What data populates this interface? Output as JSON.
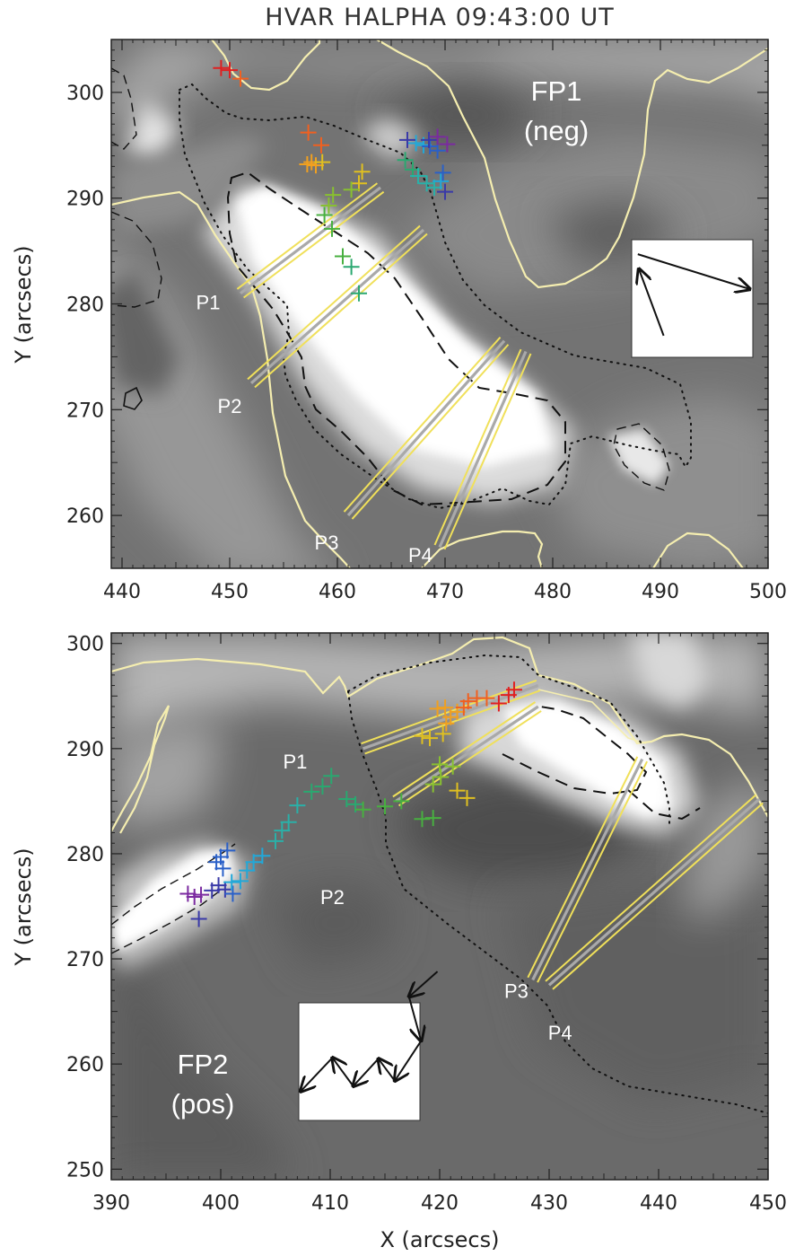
{
  "figure": {
    "title": "HVAR HALPHA 09:43:00 UT",
    "xlabel": "X (arcsecs)"
  },
  "colors": {
    "contour_yellow": "#f5eeb0",
    "slit_yellow": "#f0e05a",
    "slit_center": "#a9a9a9",
    "rainbow": [
      "#7b2aa0",
      "#3a3aa8",
      "#2a60c8",
      "#22a8d8",
      "#2ab0a8",
      "#2aa870",
      "#48b040",
      "#88c030",
      "#e0c020",
      "#f0a020",
      "#f06020",
      "#e02020"
    ]
  },
  "chart_data": [
    {
      "type": "scatter",
      "panel": "top",
      "title": "HVAR HALPHA 09:43:00 UT",
      "xlabel": "",
      "ylabel": "Y (arcsecs)",
      "xlim": [
        439,
        500
      ],
      "ylim": [
        255,
        305
      ],
      "xticks": [
        440,
        450,
        460,
        470,
        480,
        490,
        500
      ],
      "yticks": [
        260,
        270,
        280,
        290,
        300
      ],
      "grid": false,
      "background": "grayscale H-alpha intensity image",
      "labels": {
        "footpoint": "FP1",
        "polarity": "(neg)"
      },
      "slits": [
        {
          "label": "P1",
          "start": [
            451,
            281
          ],
          "end": [
            464,
            291
          ],
          "label_at": [
            448,
            279.5
          ]
        },
        {
          "label": "P2",
          "start": [
            452,
            272.5
          ],
          "end": [
            468,
            287
          ],
          "label_at": [
            450,
            269.7
          ]
        },
        {
          "label": "P3",
          "start": [
            461,
            260
          ],
          "end": [
            475.5,
            276.5
          ],
          "label_at": [
            459,
            256.8
          ]
        },
        {
          "label": "P4",
          "start": [
            469.5,
            257
          ],
          "end": [
            477.5,
            275.5
          ],
          "label_at": [
            467.7,
            255.6
          ]
        }
      ],
      "kernels": [
        {
          "x": 449.2,
          "y": 302.3
        },
        {
          "x": 450.0,
          "y": 302.1
        },
        {
          "x": 451.0,
          "y": 301.3
        },
        {
          "x": 457.3,
          "y": 296.2
        },
        {
          "x": 458.5,
          "y": 295.0
        },
        {
          "x": 457.2,
          "y": 293.2
        },
        {
          "x": 457.6,
          "y": 293.4
        },
        {
          "x": 458.0,
          "y": 293.1
        },
        {
          "x": 458.6,
          "y": 293.4
        },
        {
          "x": 462.3,
          "y": 292.5
        },
        {
          "x": 462.0,
          "y": 291.4
        },
        {
          "x": 461.3,
          "y": 290.8
        },
        {
          "x": 459.6,
          "y": 290.3
        },
        {
          "x": 459.2,
          "y": 289.3
        },
        {
          "x": 458.8,
          "y": 288.4
        },
        {
          "x": 459.5,
          "y": 287.1
        },
        {
          "x": 460.5,
          "y": 284.5
        },
        {
          "x": 461.3,
          "y": 283.5
        },
        {
          "x": 462.0,
          "y": 281.0
        },
        {
          "x": 466.3,
          "y": 293.6
        },
        {
          "x": 467.0,
          "y": 292.7
        },
        {
          "x": 467.5,
          "y": 292.1
        },
        {
          "x": 468.3,
          "y": 291.4
        },
        {
          "x": 469.0,
          "y": 291.0
        },
        {
          "x": 469.6,
          "y": 291.6
        },
        {
          "x": 467.3,
          "y": 295.2
        },
        {
          "x": 468.0,
          "y": 295.0
        },
        {
          "x": 468.6,
          "y": 294.9
        },
        {
          "x": 469.3,
          "y": 294.5
        },
        {
          "x": 469.8,
          "y": 292.4
        },
        {
          "x": 470.0,
          "y": 290.6
        },
        {
          "x": 466.5,
          "y": 295.5
        },
        {
          "x": 468.5,
          "y": 295.5
        },
        {
          "x": 469.3,
          "y": 295.8
        },
        {
          "x": 470.2,
          "y": 295.1
        }
      ],
      "motion_arrows": [
        {
          "from": [
            490.3,
            277.0
          ],
          "to": [
            488.0,
            283.3
          ]
        },
        {
          "from": [
            487.9,
            284.7
          ],
          "to": [
            498.3,
            281.4
          ]
        }
      ]
    },
    {
      "type": "scatter",
      "panel": "bottom",
      "title": "",
      "xlabel": "X (arcsecs)",
      "ylabel": "Y (arcsecs)",
      "xlim": [
        390,
        450
      ],
      "ylim": [
        249,
        301
      ],
      "xticks": [
        390,
        400,
        410,
        420,
        430,
        440,
        450
      ],
      "yticks": [
        250,
        260,
        270,
        280,
        290,
        300
      ],
      "grid": false,
      "background": "grayscale H-alpha intensity image",
      "labels": {
        "footpoint": "FP2",
        "polarity": "(pos)"
      },
      "slits": [
        {
          "label": "P1",
          "start": [
            413,
            290
          ],
          "end": [
            429,
            296
          ],
          "label_at": [
            406.8,
            288.1
          ]
        },
        {
          "label": "P2",
          "start": [
            416,
            285
          ],
          "end": [
            429,
            294
          ],
          "label_at": [
            410.2,
            275.2
          ]
        },
        {
          "label": "P3",
          "start": [
            428.5,
            268
          ],
          "end": [
            438.5,
            289
          ],
          "label_at": [
            427.0,
            266.3
          ]
        },
        {
          "label": "P4",
          "start": [
            430,
            267.5
          ],
          "end": [
            449.2,
            285.2
          ],
          "label_at": [
            431.0,
            262.3
          ]
        }
      ],
      "kernels": [
        {
          "x": 397.0,
          "y": 276.2
        },
        {
          "x": 397.6,
          "y": 275.9
        },
        {
          "x": 398.2,
          "y": 276.1
        },
        {
          "x": 398.0,
          "y": 273.8
        },
        {
          "x": 399.2,
          "y": 276.5
        },
        {
          "x": 399.8,
          "y": 277.0
        },
        {
          "x": 400.4,
          "y": 276.6
        },
        {
          "x": 401.1,
          "y": 276.2
        },
        {
          "x": 399.6,
          "y": 279.2
        },
        {
          "x": 400.0,
          "y": 279.7
        },
        {
          "x": 400.6,
          "y": 280.3
        },
        {
          "x": 400.2,
          "y": 278.6
        },
        {
          "x": 401.0,
          "y": 277.3
        },
        {
          "x": 401.8,
          "y": 277.4
        },
        {
          "x": 402.4,
          "y": 278.4
        },
        {
          "x": 403.0,
          "y": 279.2
        },
        {
          "x": 403.8,
          "y": 279.8
        },
        {
          "x": 405.0,
          "y": 281.2
        },
        {
          "x": 405.6,
          "y": 282.2
        },
        {
          "x": 406.2,
          "y": 283.0
        },
        {
          "x": 407.0,
          "y": 284.6
        },
        {
          "x": 408.3,
          "y": 285.9
        },
        {
          "x": 409.3,
          "y": 286.4
        },
        {
          "x": 410.1,
          "y": 287.4
        },
        {
          "x": 411.5,
          "y": 285.2
        },
        {
          "x": 412.3,
          "y": 284.7
        },
        {
          "x": 413.0,
          "y": 284.2
        },
        {
          "x": 415.0,
          "y": 284.5
        },
        {
          "x": 416.5,
          "y": 285.0
        },
        {
          "x": 418.4,
          "y": 283.3
        },
        {
          "x": 419.4,
          "y": 283.4
        },
        {
          "x": 419.4,
          "y": 286.6
        },
        {
          "x": 420.1,
          "y": 287.3
        },
        {
          "x": 420.0,
          "y": 288.5
        },
        {
          "x": 421.2,
          "y": 288.3
        },
        {
          "x": 421.6,
          "y": 286.0
        },
        {
          "x": 422.5,
          "y": 285.3
        },
        {
          "x": 418.4,
          "y": 291.2
        },
        {
          "x": 419.1,
          "y": 291.0
        },
        {
          "x": 420.3,
          "y": 291.4
        },
        {
          "x": 420.6,
          "y": 292.4
        },
        {
          "x": 421.0,
          "y": 293.0
        },
        {
          "x": 419.8,
          "y": 293.8
        },
        {
          "x": 420.5,
          "y": 293.9
        },
        {
          "x": 421.6,
          "y": 293.5
        },
        {
          "x": 422.2,
          "y": 293.9
        },
        {
          "x": 422.6,
          "y": 294.5
        },
        {
          "x": 423.4,
          "y": 294.8
        },
        {
          "x": 424.3,
          "y": 294.8
        },
        {
          "x": 425.4,
          "y": 294.3
        },
        {
          "x": 426.3,
          "y": 295.1
        },
        {
          "x": 426.8,
          "y": 295.6
        }
      ],
      "motion_arrows": [
        {
          "from": [
            419.8,
            268.8
          ],
          "to": [
            417.2,
            266.4
          ]
        },
        {
          "from": [
            417.2,
            266.4
          ],
          "to": [
            418.3,
            262.2
          ]
        },
        {
          "from": [
            418.3,
            262.2
          ],
          "to": [
            415.9,
            258.4
          ]
        },
        {
          "from": [
            415.9,
            258.4
          ],
          "to": [
            414.4,
            260.5
          ]
        },
        {
          "from": [
            414.4,
            260.5
          ],
          "to": [
            412.1,
            257.9
          ]
        },
        {
          "from": [
            412.1,
            257.9
          ],
          "to": [
            410.2,
            260.6
          ]
        },
        {
          "from": [
            410.2,
            260.6
          ],
          "to": [
            407.3,
            257.4
          ]
        }
      ]
    }
  ]
}
